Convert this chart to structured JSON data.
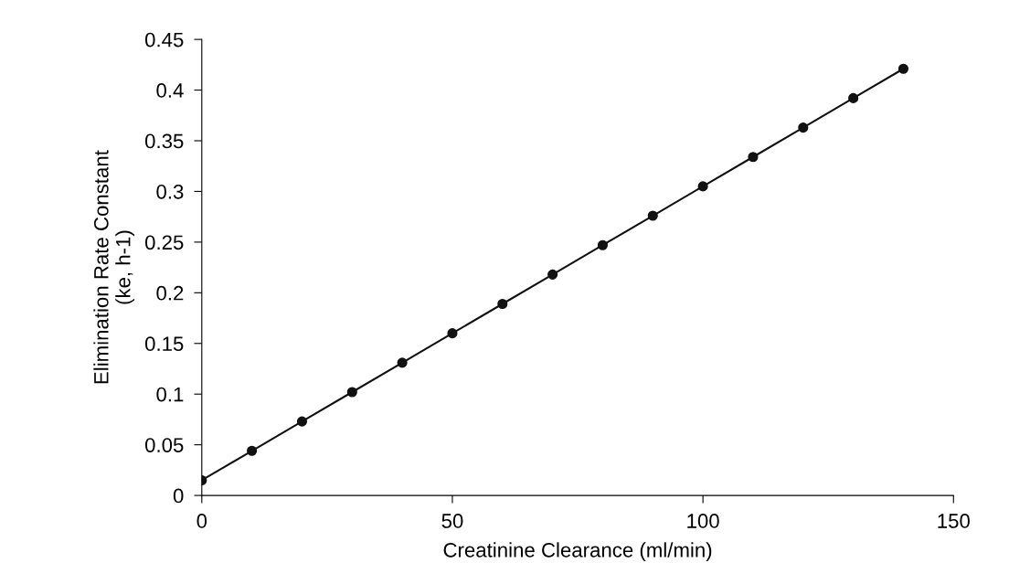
{
  "chart_data": {
    "type": "line",
    "xlabel": "Creatinine Clearance (ml/min)",
    "ylabel": "Elimination Rate Constant\n(ke, h-1)",
    "x": [
      0,
      10,
      20,
      30,
      40,
      50,
      60,
      70,
      80,
      90,
      100,
      110,
      120,
      130,
      140
    ],
    "series": [
      {
        "color": "#111111",
        "values": [
          0.015,
          0.044,
          0.073,
          0.102,
          0.131,
          0.16,
          0.189,
          0.218,
          0.247,
          0.276,
          0.305,
          0.334,
          0.363,
          0.392,
          0.421
        ]
      }
    ],
    "xlim": [
      0,
      150
    ],
    "xticks": [
      0,
      50,
      100,
      150
    ],
    "ylim": [
      0,
      0.45
    ],
    "yticks": [
      0,
      0.05,
      0.1,
      0.15,
      0.2,
      0.25,
      0.3,
      0.35,
      0.4,
      0.45
    ],
    "marker": "circle",
    "line_style": "solid",
    "grid": false
  }
}
